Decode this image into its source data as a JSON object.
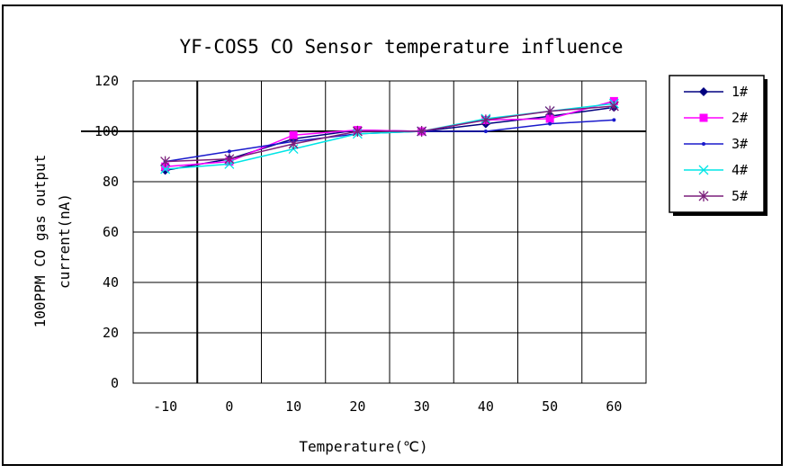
{
  "chart_data": {
    "type": "line",
    "title": "YF-COS5  CO Sensor temperature influence",
    "xlabel": "Temperature(℃)",
    "ylabel_lines": [
      "100PPM CO gas output",
      "current(nA)"
    ],
    "categories": [
      "-10",
      "0",
      "10",
      "20",
      "30",
      "40",
      "50",
      "60"
    ],
    "yticks": [
      "0",
      "20",
      "40",
      "60",
      "80",
      "100",
      "120"
    ],
    "ylim": [
      0,
      120
    ],
    "grid": true,
    "reference_line": 100,
    "legend_position": "right",
    "series": [
      {
        "name": "1#",
        "color": "#000080",
        "marker": "diamond",
        "values": [
          84.5,
          89,
          97,
          100.5,
          100,
          103,
          106,
          109.5
        ]
      },
      {
        "name": "2#",
        "color": "#ff00ff",
        "marker": "square",
        "values": [
          86,
          88,
          98.5,
          100.5,
          100,
          104.5,
          105,
          112
        ]
      },
      {
        "name": "3#",
        "color": "#1a1acc",
        "marker": "dot",
        "values": [
          88,
          92,
          96,
          99,
          100,
          100,
          103,
          104.5
        ]
      },
      {
        "name": "4#",
        "color": "#00e5e5",
        "marker": "x",
        "values": [
          85,
          87,
          93,
          99,
          100,
          105,
          108,
          111
        ]
      },
      {
        "name": "5#",
        "color": "#7b1f7b",
        "marker": "asterisk",
        "values": [
          88,
          89,
          95,
          100,
          100,
          104.5,
          108,
          110
        ]
      }
    ]
  }
}
